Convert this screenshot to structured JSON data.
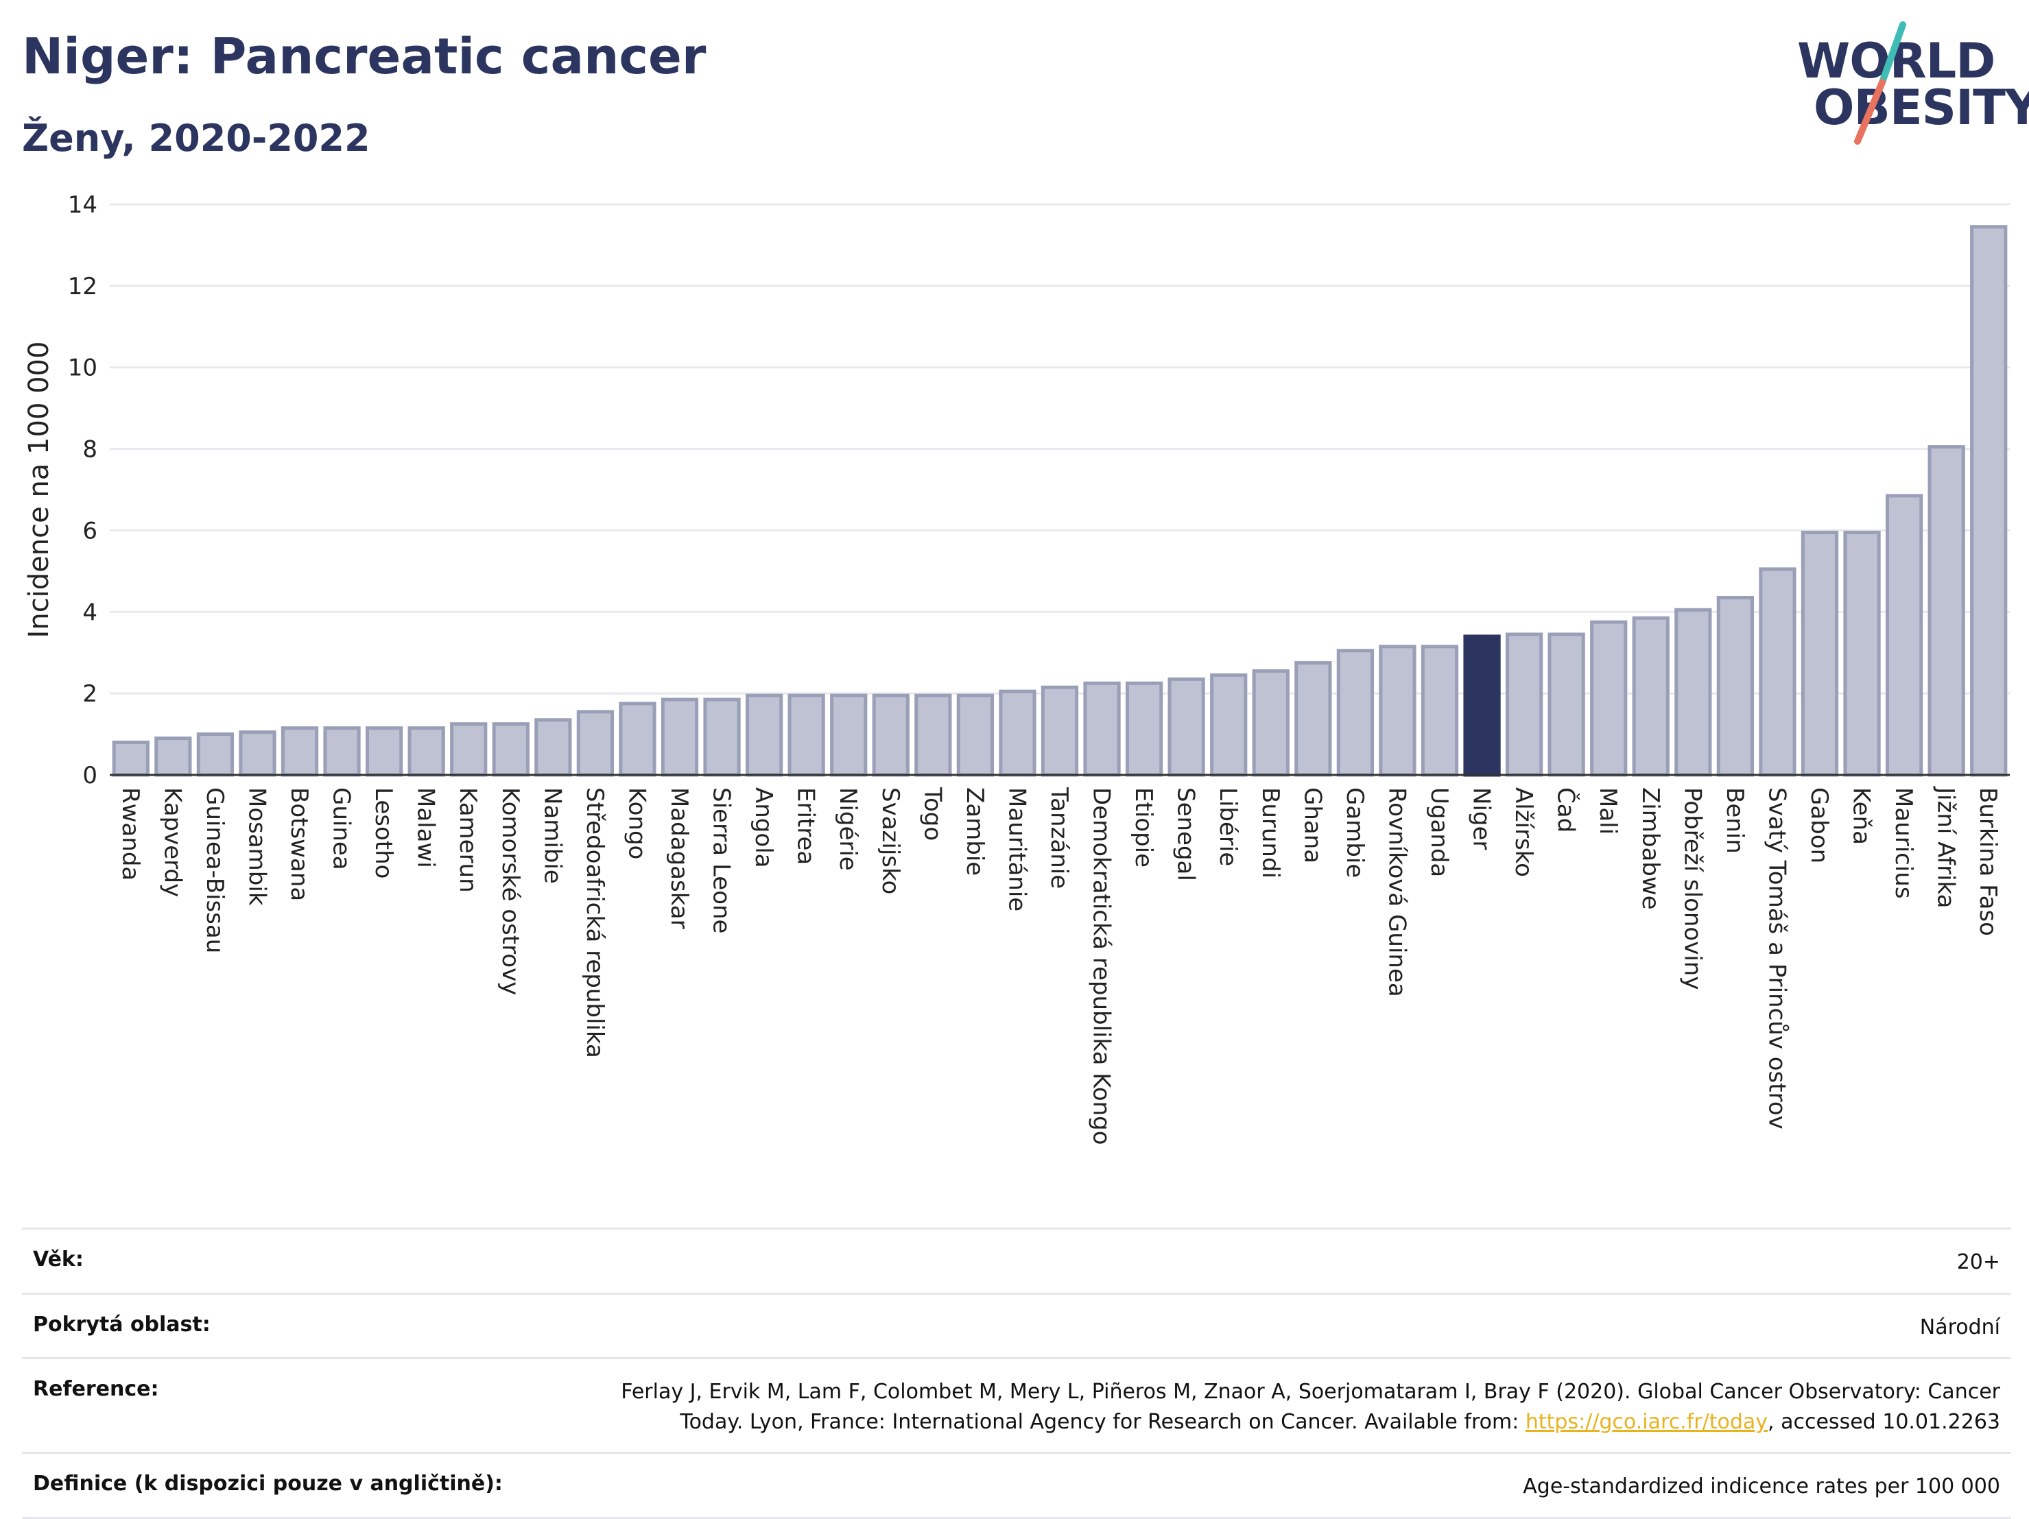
{
  "header": {
    "title": "Niger: Pancreatic cancer",
    "subtitle": "Ženy, 2020-2022"
  },
  "logo": {
    "line1": "WORLD",
    "line2": "OBESITY",
    "accent_colors": [
      "#3fbcb4",
      "#e8735f"
    ]
  },
  "colors": {
    "bar_fill": "#bfc2d2",
    "bar_stroke": "#9a9fb8",
    "highlight": "#2b3560",
    "grid": "#e8e8ee",
    "text": "#222222"
  },
  "chart_data": {
    "type": "bar",
    "ylabel": "Incidence na 100 000",
    "ylim": [
      0,
      14
    ],
    "yticks": [
      0,
      2,
      4,
      6,
      8,
      10,
      12,
      14
    ],
    "grid": true,
    "highlight_category": "Niger",
    "categories": [
      "Rwanda",
      "Kapverdy",
      "Guinea-Bissau",
      "Mosambik",
      "Botswana",
      "Guinea",
      "Lesotho",
      "Malawi",
      "Kamerun",
      "Komorské ostrovy",
      "Namibie",
      "Středoafrická republika",
      "Kongo",
      "Madagaskar",
      "Sierra Leone",
      "Angola",
      "Eritrea",
      "Nigérie",
      "Svazijsko",
      "Togo",
      "Zambie",
      "Mauritánie",
      "Tanzánie",
      "Demokratická republika Kongo",
      "Etiopie",
      "Senegal",
      "Libérie",
      "Burundi",
      "Ghana",
      "Gambie",
      "Rovníková Guinea",
      "Uganda",
      "Niger",
      "Alžírsko",
      "Čad",
      "Mali",
      "Zimbabwe",
      "Pobřeží slonoviny",
      "Benin",
      "Svatý Tomáš a Princův ostrov",
      "Gabon",
      "Keňa",
      "Mauricius",
      "Jižní Afrika",
      "Burkina Faso"
    ],
    "values": [
      0.8,
      0.9,
      1.0,
      1.05,
      1.15,
      1.15,
      1.15,
      1.15,
      1.25,
      1.25,
      1.35,
      1.55,
      1.75,
      1.85,
      1.85,
      1.95,
      1.95,
      1.95,
      1.95,
      1.95,
      1.95,
      2.05,
      2.15,
      2.25,
      2.25,
      2.35,
      2.45,
      2.55,
      2.75,
      3.05,
      3.15,
      3.15,
      3.4,
      3.45,
      3.45,
      3.75,
      3.85,
      4.05,
      4.35,
      5.05,
      5.95,
      5.95,
      6.85,
      8.05,
      13.45
    ]
  },
  "meta": {
    "rows": [
      {
        "label": "Věk:",
        "value": "20+"
      },
      {
        "label": "Pokrytá oblast:",
        "value": "Národní"
      },
      {
        "label": "Reference:",
        "value_line1": "Ferlay J, Ervik M, Lam F, Colombet M, Mery L, Piñeros M, Znaor A, Soerjomataram I, Bray F (2020). Global Cancer Observatory: Cancer",
        "value_line2_pre": "Today. Lyon, France: International Agency for Research on Cancer. Available from: ",
        "link": "https://gco.iarc.fr/today",
        "value_line2_post": ", accessed 10.01.2263"
      },
      {
        "label": "Definice (k dispozici pouze v angličtině):",
        "value": "Age-standardized indicence rates per 100 000"
      }
    ]
  }
}
